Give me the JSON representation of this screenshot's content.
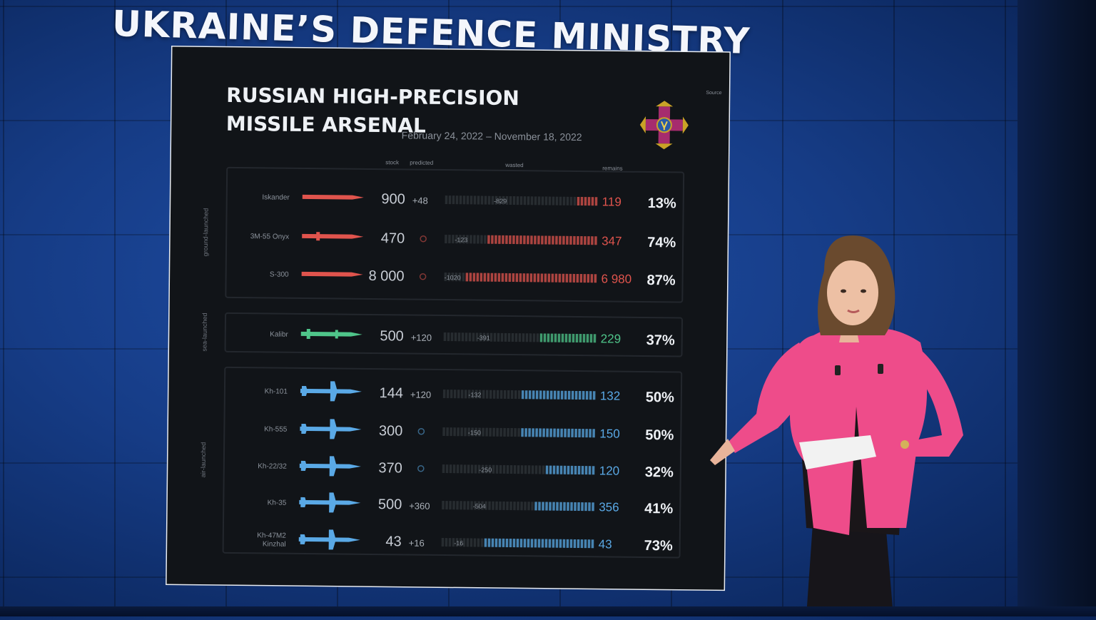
{
  "headline": "UKRAINE’S DEFENCE MINISTRY",
  "chart_data": {
    "type": "bar",
    "title_line1": "RUSSIAN HIGH-PRECISION",
    "title_line2": "MISSILE ARSENAL",
    "date_range": "February 24, 2022 – November 18, 2022",
    "corner_label": "Source",
    "column_headers": {
      "stock": "stock",
      "predicted": "predicted",
      "wasted": "wasted",
      "remains": "remains"
    },
    "groups": [
      {
        "name": "ground-launched",
        "color": "#e0544d",
        "rows": [
          {
            "missile": "Iskander",
            "stock": "900",
            "predicted": "+48",
            "wasted": "-829",
            "remains": "119",
            "percent": "13%",
            "remaining_fraction": 0.13
          },
          {
            "missile": "3M-55 Onyx",
            "stock": "470",
            "predicted": "",
            "wasted": "-123",
            "remains": "347",
            "percent": "74%",
            "remaining_fraction": 0.74
          },
          {
            "missile": "S-300",
            "stock": "8 000",
            "predicted": "",
            "wasted": "-1020",
            "remains": "6 980",
            "percent": "87%",
            "remaining_fraction": 0.87
          }
        ]
      },
      {
        "name": "sea-launched",
        "color": "#4fc58a",
        "rows": [
          {
            "missile": "Kalibr",
            "stock": "500",
            "predicted": "+120",
            "wasted": "-391",
            "remains": "229",
            "percent": "37%",
            "remaining_fraction": 0.37
          }
        ]
      },
      {
        "name": "air-launched",
        "color": "#5aa9e6",
        "rows": [
          {
            "missile": "Kh-101",
            "stock": "144",
            "predicted": "+120",
            "wasted": "-132",
            "remains": "132",
            "percent": "50%",
            "remaining_fraction": 0.5
          },
          {
            "missile": "Kh-555",
            "stock": "300",
            "predicted": "",
            "wasted": "-150",
            "remains": "150",
            "percent": "50%",
            "remaining_fraction": 0.5
          },
          {
            "missile": "Kh-22/32",
            "stock": "370",
            "predicted": "",
            "wasted": "-250",
            "remains": "120",
            "percent": "32%",
            "remaining_fraction": 0.32
          },
          {
            "missile": "Kh-35",
            "stock": "500",
            "predicted": "+360",
            "wasted": "-504",
            "remains": "356",
            "percent": "41%",
            "remaining_fraction": 0.41
          },
          {
            "missile": "Kh-47M2 Kinzhal",
            "stock": "43",
            "predicted": "+16",
            "wasted": "-16",
            "remains": "43",
            "percent": "73%",
            "remaining_fraction": 0.73
          }
        ]
      }
    ],
    "emblem": "ukraine-defence-ministry-emblem"
  }
}
